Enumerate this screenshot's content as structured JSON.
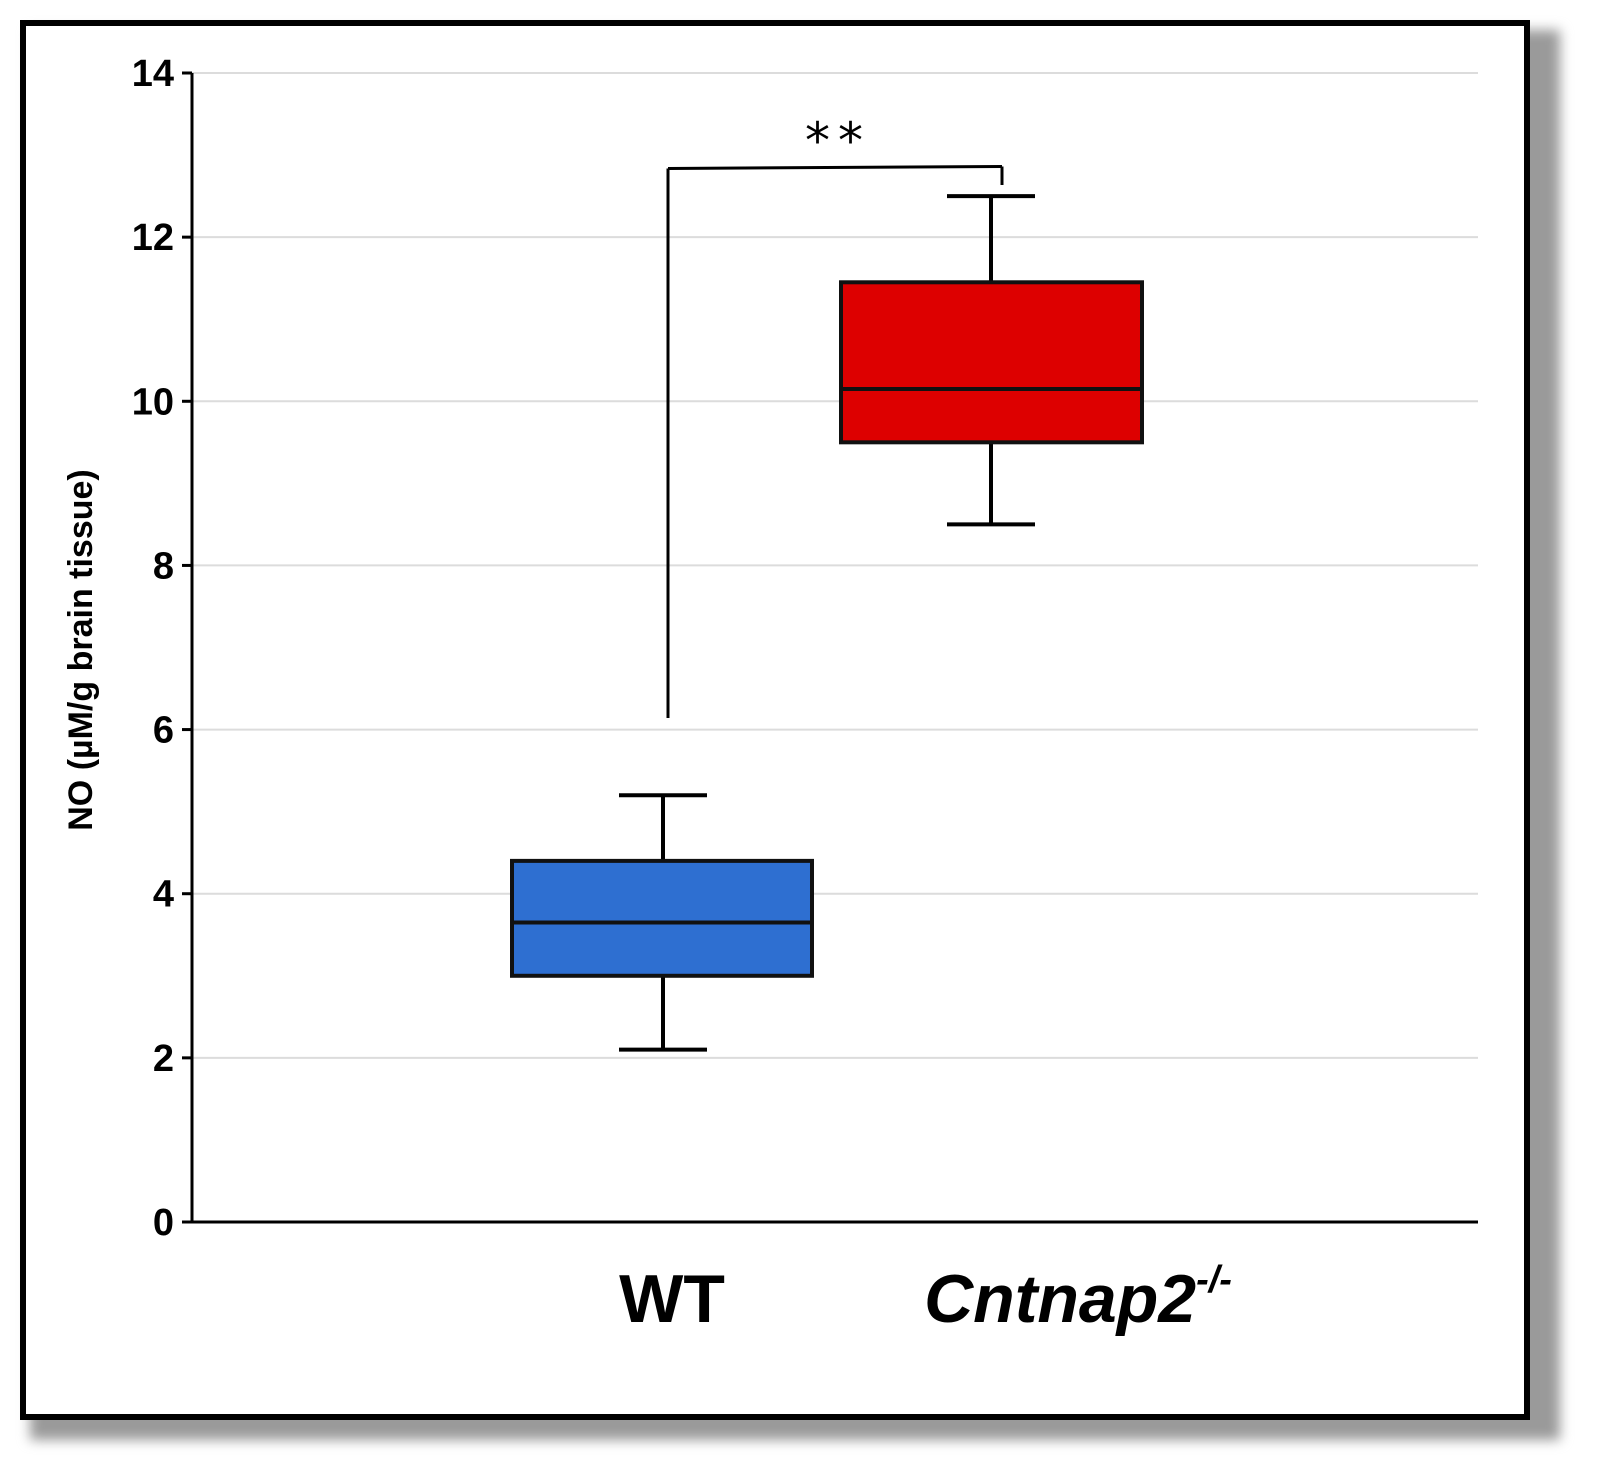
{
  "chart_data": {
    "type": "boxplot",
    "ylabel": "NO (µM/g brain tissue)",
    "xlabel": "",
    "ylim": [
      0,
      14
    ],
    "yticks": [
      0,
      2,
      4,
      6,
      8,
      10,
      12,
      14
    ],
    "grid": true,
    "categories": [
      {
        "label": "WT",
        "italic": false,
        "superscript": ""
      },
      {
        "label": "Cntnap2",
        "italic": true,
        "superscript": "-/-"
      }
    ],
    "series": [
      {
        "name": "WT",
        "color": "#2e6fd1",
        "min": 2.1,
        "q1": 3.0,
        "median": 3.65,
        "q3": 4.4,
        "max": 5.2
      },
      {
        "name": "Cntnap2-/-",
        "color": "#dd0000",
        "min": 8.5,
        "q1": 9.5,
        "median": 10.15,
        "q3": 11.45,
        "max": 12.5
      }
    ],
    "annotations": [
      {
        "type": "significance",
        "text": "**",
        "between": [
          "WT",
          "Cntnap2-/-"
        ],
        "y": 12.8
      }
    ]
  },
  "colors": {
    "grid": "#dcdcdc",
    "axis": "#000000",
    "frame": "#000000"
  }
}
